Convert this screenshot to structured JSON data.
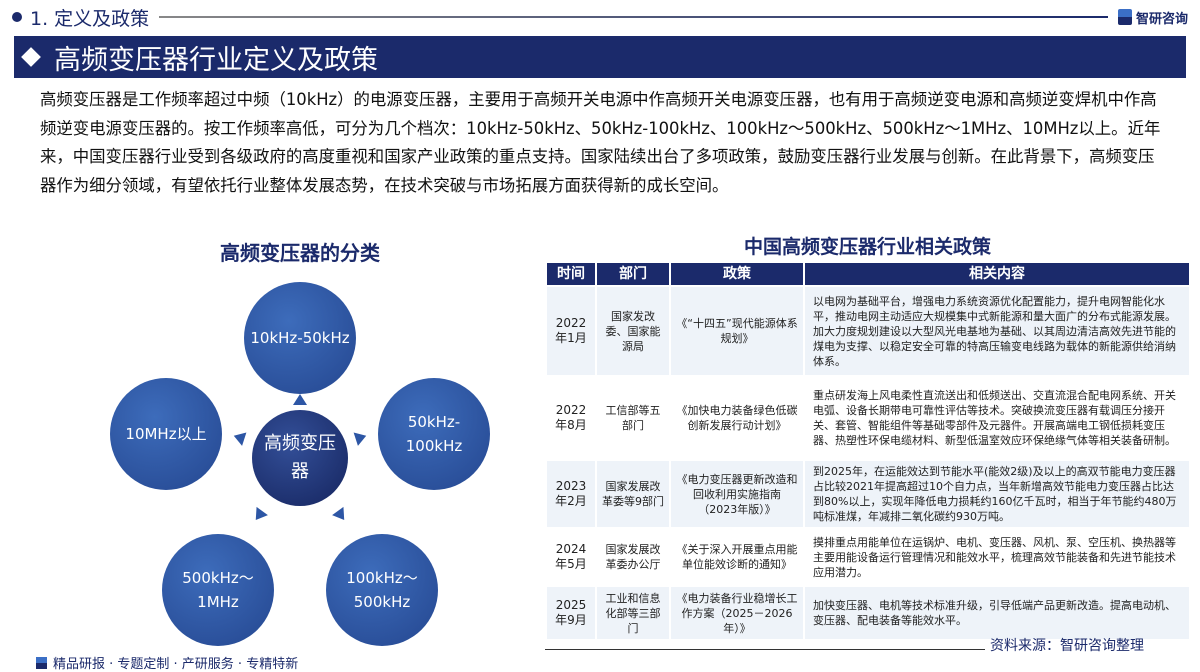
{
  "section": "1. 定义及政策",
  "brand": "智研咨询",
  "banner": "高频变压器行业定义及政策",
  "intro": "高频变压器是工作频率超过中频（10kHz）的电源变压器，主要用于高频开关电源中作高频开关电源变压器，也有用于高频逆变电源和高频逆变焊机中作高频逆变电源变压器的。按工作频率高低，可分为几个档次：10kHz-50kHz、50kHz-100kHz、100kHz～500kHz、500kHz～1MHz、10MHz以上。近年来，中国变压器行业受到各级政府的高度重视和国家产业政策的重点支持。国家陆续出台了多项政策，鼓励变压器行业发展与创新。在此背景下，高频变压器作为细分领域，有望依托行业整体发展态势，在技术突破与市场拓展方面获得新的成长空间。",
  "classification": {
    "title": "高频变压器的分类",
    "center": "高频变压器",
    "items": [
      "10kHz-50kHz",
      "50kHz-100kHz",
      "100kHz～500kHz",
      "500kHz～1MHz",
      "10MHz以上"
    ]
  },
  "policy": {
    "title": "中国高频变压器行业相关政策",
    "headers": [
      "时间",
      "部门",
      "政策",
      "相关内容"
    ],
    "rows": [
      [
        "2022年1月",
        "国家发改委、国家能源局",
        "《“十四五”现代能源体系规划》",
        "以电网为基础平台，增强电力系统资源优化配置能力，提升电网智能化水平，推动电网主动适应大规模集中式新能源和量大面广的分布式能源发展。加大力度规划建设以大型风光电基地为基础、以其周边清洁高效先进节能的煤电为支撑、以稳定安全可靠的特高压输变电线路为载体的新能源供给消纳体系。"
      ],
      [
        "2022年8月",
        "工信部等五部门",
        "《加快电力装备绿色低碳创新发展行动计划》",
        "重点研发海上风电柔性直流送出和低频送出、交直流混合配电网系统、开关电弧、设备长期带电可靠性评估等技术。突破换流变压器有载调压分接开关、套管、智能组件等基础零部件及元器件。开展高端电工钢低损耗变压器、热塑性环保电缆材料、新型低温室效应环保绝缘气体等相关装备研制。"
      ],
      [
        "2023年2月",
        "国家发展改革委等9部门",
        "《电力变压器更新改造和回收利用实施指南（2023年版）》",
        "到2025年，在运能效达到节能水平(能效2级)及以上的高双节能电力变压器占比较2021年提高超过10个自力点，当年新增高效节能电力变压器占比达到80%以上，实现年降低电力损耗约160亿千瓦时，相当于年节能约480万吨标准煤，年减排二氧化碳约930万吨。"
      ],
      [
        "2024年5月",
        "国家发展改革委办公厅",
        "《关于深入开展重点用能单位能效诊断的通知》",
        "摸排重点用能单位在运锅炉、电机、变压器、风机、泵、空压机、换热器等主要用能设备运行管理情况和能效水平，梳理高效节能装备和先进节能技术应用潜力。"
      ],
      [
        "2025年9月",
        "工业和信息化部等三部门",
        "《电力装备行业稳增长工作方案（2025－2026年）》",
        "加快变压器、电机等技术标准升级，引导低端产品更新改造。提高电动机、变压器、配电装备等能效水平。"
      ]
    ]
  },
  "source": "资料来源：智研咨询整理",
  "footer": "精品研报 · 专题定制 · 产研服务 · 专精特新"
}
